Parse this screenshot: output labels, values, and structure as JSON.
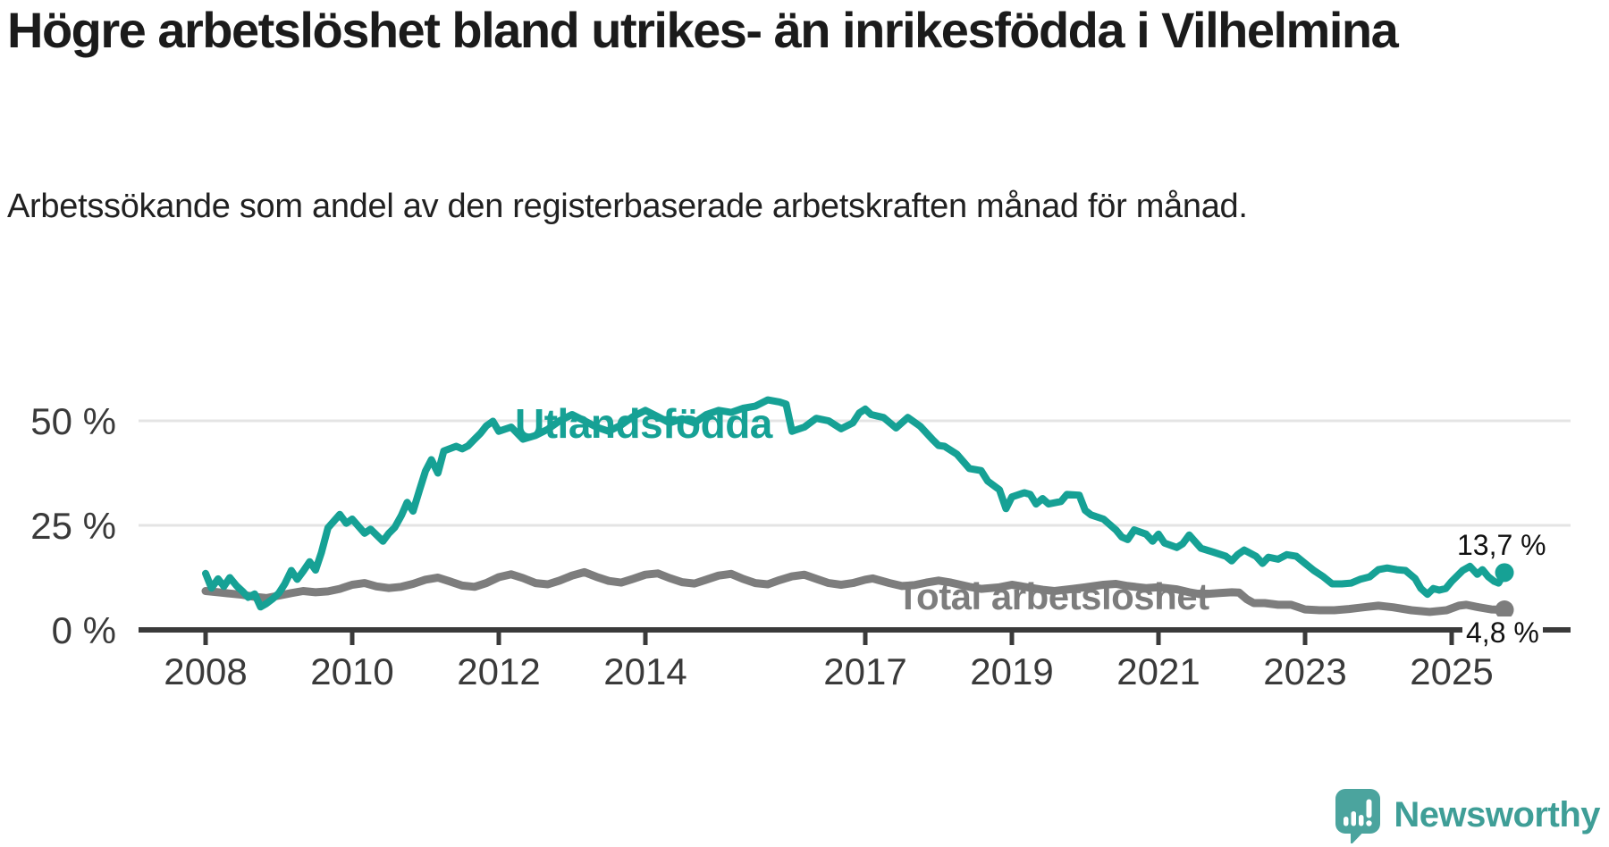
{
  "header": {
    "title": "Högre arbetslöshet bland utrikes- än inrikesfödda i Vilhelmina",
    "subtitle": "Arbetssökande som andel av den registerbaserade arbetskraften månad för månad."
  },
  "logo": {
    "icon": "newsworthy-logo-icon",
    "text": "Newsworthy",
    "text_color": "#3f9e97",
    "icon_color": "#4ba49e"
  },
  "chart_data": {
    "type": "line",
    "title": "Högre arbetslöshet bland utrikes- än inrikesfödda i Vilhelmina",
    "subtitle": "Arbetssökande som andel av den registerbaserade arbetskraften månad för månad.",
    "xlabel": "",
    "ylabel": "",
    "ylim": [
      0,
      57
    ],
    "xlim": [
      2007.6,
      2026.3
    ],
    "grid": "horizontal",
    "grid_color": "#e4e4e4",
    "axis_color": "#3a3a3a",
    "tick_label_color": "#3a3a3a",
    "x_ticks": [
      {
        "label": "2008",
        "value": 2008
      },
      {
        "label": "2010",
        "value": 2010
      },
      {
        "label": "2012",
        "value": 2012
      },
      {
        "label": "2014",
        "value": 2014
      },
      {
        "label": "2017",
        "value": 2017
      },
      {
        "label": "2019",
        "value": 2019
      },
      {
        "label": "2021",
        "value": 2021
      },
      {
        "label": "2023",
        "value": 2023
      },
      {
        "label": "2025",
        "value": 2025
      }
    ],
    "y_ticks": [
      {
        "label": "0 %",
        "value": 0
      },
      {
        "label": "25 %",
        "value": 25
      },
      {
        "label": "50 %",
        "value": 50
      }
    ],
    "series": [
      {
        "name": "Utlandsfödda",
        "color": "#16a195",
        "end_label": "13,7 %",
        "end_value": 13.7,
        "points": [
          [
            2008.0,
            13.5
          ],
          [
            2008.08,
            10.0
          ],
          [
            2008.17,
            12.2
          ],
          [
            2008.25,
            10.4
          ],
          [
            2008.33,
            12.5
          ],
          [
            2008.42,
            10.6
          ],
          [
            2008.5,
            9.3
          ],
          [
            2008.58,
            7.8
          ],
          [
            2008.67,
            8.6
          ],
          [
            2008.75,
            5.5
          ],
          [
            2008.83,
            6.3
          ],
          [
            2008.92,
            7.5
          ],
          [
            2009.0,
            8.8
          ],
          [
            2009.08,
            11.0
          ],
          [
            2009.17,
            14.2
          ],
          [
            2009.25,
            12.1
          ],
          [
            2009.33,
            14.0
          ],
          [
            2009.42,
            16.3
          ],
          [
            2009.5,
            14.3
          ],
          [
            2009.58,
            18.5
          ],
          [
            2009.67,
            24.4
          ],
          [
            2009.75,
            26.0
          ],
          [
            2009.83,
            27.6
          ],
          [
            2009.92,
            25.5
          ],
          [
            2010.0,
            26.5
          ],
          [
            2010.17,
            23.1
          ],
          [
            2010.25,
            24.1
          ],
          [
            2010.42,
            21.2
          ],
          [
            2010.5,
            23.1
          ],
          [
            2010.58,
            24.5
          ],
          [
            2010.67,
            27.3
          ],
          [
            2010.75,
            30.5
          ],
          [
            2010.83,
            28.4
          ],
          [
            2010.92,
            33.5
          ],
          [
            2011.0,
            38.0
          ],
          [
            2011.08,
            40.7
          ],
          [
            2011.17,
            37.5
          ],
          [
            2011.25,
            42.8
          ],
          [
            2011.42,
            43.9
          ],
          [
            2011.5,
            43.3
          ],
          [
            2011.58,
            44.0
          ],
          [
            2011.67,
            45.6
          ],
          [
            2011.75,
            47.0
          ],
          [
            2011.83,
            48.8
          ],
          [
            2011.92,
            49.9
          ],
          [
            2012.0,
            47.5
          ],
          [
            2012.17,
            48.5
          ],
          [
            2012.33,
            45.6
          ],
          [
            2012.5,
            46.5
          ],
          [
            2012.67,
            48.0
          ],
          [
            2012.83,
            50.0
          ],
          [
            2013.0,
            51.5
          ],
          [
            2013.17,
            50.0
          ],
          [
            2013.33,
            48.5
          ],
          [
            2013.5,
            47.5
          ],
          [
            2013.67,
            49.0
          ],
          [
            2013.83,
            51.0
          ],
          [
            2014.0,
            52.5
          ],
          [
            2014.17,
            51.0
          ],
          [
            2014.33,
            49.5
          ],
          [
            2014.5,
            50.5
          ],
          [
            2014.67,
            49.5
          ],
          [
            2014.83,
            51.5
          ],
          [
            2015.0,
            52.5
          ],
          [
            2015.17,
            52.0
          ],
          [
            2015.33,
            53.0
          ],
          [
            2015.5,
            53.5
          ],
          [
            2015.67,
            55.0
          ],
          [
            2015.83,
            54.5
          ],
          [
            2015.92,
            54.0
          ],
          [
            2016.0,
            47.5
          ],
          [
            2016.17,
            48.5
          ],
          [
            2016.33,
            50.6
          ],
          [
            2016.5,
            50.0
          ],
          [
            2016.67,
            48.1
          ],
          [
            2016.83,
            49.5
          ],
          [
            2016.92,
            51.9
          ],
          [
            2017.0,
            52.8
          ],
          [
            2017.08,
            51.5
          ],
          [
            2017.25,
            50.8
          ],
          [
            2017.42,
            48.3
          ],
          [
            2017.58,
            50.8
          ],
          [
            2017.75,
            48.7
          ],
          [
            2017.92,
            45.5
          ],
          [
            2018.0,
            44.1
          ],
          [
            2018.08,
            43.9
          ],
          [
            2018.25,
            42.0
          ],
          [
            2018.42,
            38.6
          ],
          [
            2018.58,
            38.1
          ],
          [
            2018.67,
            35.6
          ],
          [
            2018.83,
            33.5
          ],
          [
            2018.92,
            29.0
          ],
          [
            2019.0,
            31.8
          ],
          [
            2019.17,
            32.8
          ],
          [
            2019.25,
            32.4
          ],
          [
            2019.33,
            30.1
          ],
          [
            2019.42,
            31.4
          ],
          [
            2019.5,
            30.1
          ],
          [
            2019.67,
            30.7
          ],
          [
            2019.75,
            32.4
          ],
          [
            2019.92,
            32.2
          ],
          [
            2020.0,
            28.6
          ],
          [
            2020.08,
            27.5
          ],
          [
            2020.25,
            26.5
          ],
          [
            2020.42,
            23.9
          ],
          [
            2020.5,
            22.2
          ],
          [
            2020.58,
            21.6
          ],
          [
            2020.67,
            23.9
          ],
          [
            2020.83,
            22.9
          ],
          [
            2020.92,
            21.2
          ],
          [
            2021.0,
            22.9
          ],
          [
            2021.08,
            20.8
          ],
          [
            2021.25,
            19.7
          ],
          [
            2021.33,
            20.6
          ],
          [
            2021.42,
            22.7
          ],
          [
            2021.58,
            19.5
          ],
          [
            2021.75,
            18.6
          ],
          [
            2021.92,
            17.6
          ],
          [
            2022.0,
            16.5
          ],
          [
            2022.08,
            18.0
          ],
          [
            2022.17,
            19.1
          ],
          [
            2022.33,
            17.6
          ],
          [
            2022.42,
            15.9
          ],
          [
            2022.5,
            17.4
          ],
          [
            2022.63,
            16.9
          ],
          [
            2022.75,
            18.0
          ],
          [
            2022.88,
            17.6
          ],
          [
            2023.0,
            15.9
          ],
          [
            2023.12,
            14.2
          ],
          [
            2023.25,
            12.7
          ],
          [
            2023.37,
            11.0
          ],
          [
            2023.5,
            11.0
          ],
          [
            2023.63,
            11.2
          ],
          [
            2023.75,
            12.1
          ],
          [
            2023.88,
            12.7
          ],
          [
            2024.0,
            14.4
          ],
          [
            2024.12,
            14.8
          ],
          [
            2024.25,
            14.4
          ],
          [
            2024.37,
            14.2
          ],
          [
            2024.5,
            12.3
          ],
          [
            2024.58,
            9.9
          ],
          [
            2024.67,
            8.5
          ],
          [
            2024.75,
            9.9
          ],
          [
            2024.83,
            9.5
          ],
          [
            2024.92,
            9.9
          ],
          [
            2025.0,
            11.6
          ],
          [
            2025.15,
            14.2
          ],
          [
            2025.25,
            15.2
          ],
          [
            2025.35,
            13.3
          ],
          [
            2025.42,
            14.4
          ],
          [
            2025.5,
            12.7
          ],
          [
            2025.58,
            11.6
          ],
          [
            2025.64,
            11.2
          ],
          [
            2025.72,
            13.7
          ]
        ]
      },
      {
        "name": "Total arbetslöshet",
        "color": "#7d7d7d",
        "end_label": "4,8 %",
        "end_value": 4.8,
        "points": [
          [
            2008.0,
            9.3
          ],
          [
            2008.17,
            9.0
          ],
          [
            2008.33,
            8.7
          ],
          [
            2008.5,
            8.4
          ],
          [
            2008.67,
            7.9
          ],
          [
            2008.83,
            7.6
          ],
          [
            2009.0,
            8.2
          ],
          [
            2009.17,
            8.8
          ],
          [
            2009.33,
            9.3
          ],
          [
            2009.5,
            9.0
          ],
          [
            2009.67,
            9.2
          ],
          [
            2009.83,
            9.8
          ],
          [
            2010.0,
            10.8
          ],
          [
            2010.17,
            11.2
          ],
          [
            2010.33,
            10.4
          ],
          [
            2010.5,
            10.0
          ],
          [
            2010.67,
            10.3
          ],
          [
            2010.83,
            11.0
          ],
          [
            2011.0,
            12.0
          ],
          [
            2011.17,
            12.5
          ],
          [
            2011.33,
            11.6
          ],
          [
            2011.5,
            10.6
          ],
          [
            2011.67,
            10.3
          ],
          [
            2011.83,
            11.2
          ],
          [
            2012.0,
            12.6
          ],
          [
            2012.17,
            13.3
          ],
          [
            2012.33,
            12.4
          ],
          [
            2012.5,
            11.2
          ],
          [
            2012.67,
            10.9
          ],
          [
            2012.83,
            11.8
          ],
          [
            2013.0,
            13.0
          ],
          [
            2013.17,
            13.8
          ],
          [
            2013.33,
            12.7
          ],
          [
            2013.5,
            11.7
          ],
          [
            2013.67,
            11.3
          ],
          [
            2013.83,
            12.2
          ],
          [
            2014.0,
            13.2
          ],
          [
            2014.17,
            13.5
          ],
          [
            2014.33,
            12.4
          ],
          [
            2014.5,
            11.4
          ],
          [
            2014.67,
            11.1
          ],
          [
            2014.83,
            12.0
          ],
          [
            2015.0,
            13.0
          ],
          [
            2015.17,
            13.4
          ],
          [
            2015.33,
            12.2
          ],
          [
            2015.5,
            11.2
          ],
          [
            2015.67,
            10.9
          ],
          [
            2015.83,
            11.9
          ],
          [
            2016.0,
            12.8
          ],
          [
            2016.17,
            13.2
          ],
          [
            2016.33,
            12.2
          ],
          [
            2016.5,
            11.2
          ],
          [
            2016.67,
            10.8
          ],
          [
            2016.83,
            11.2
          ],
          [
            2017.0,
            12.0
          ],
          [
            2017.1,
            12.3
          ],
          [
            2017.33,
            11.2
          ],
          [
            2017.5,
            10.5
          ],
          [
            2017.67,
            10.7
          ],
          [
            2017.83,
            11.3
          ],
          [
            2018.0,
            11.8
          ],
          [
            2018.17,
            11.3
          ],
          [
            2018.42,
            10.3
          ],
          [
            2018.58,
            9.8
          ],
          [
            2018.83,
            10.2
          ],
          [
            2019.0,
            10.8
          ],
          [
            2019.17,
            10.3
          ],
          [
            2019.42,
            9.6
          ],
          [
            2019.58,
            9.3
          ],
          [
            2019.83,
            9.8
          ],
          [
            2020.0,
            10.2
          ],
          [
            2020.25,
            10.8
          ],
          [
            2020.42,
            11.0
          ],
          [
            2020.58,
            10.5
          ],
          [
            2020.83,
            10.0
          ],
          [
            2021.0,
            10.2
          ],
          [
            2021.25,
            9.7
          ],
          [
            2021.42,
            9.0
          ],
          [
            2021.58,
            8.5
          ],
          [
            2021.83,
            8.8
          ],
          [
            2022.0,
            9.0
          ],
          [
            2022.1,
            8.9
          ],
          [
            2022.2,
            7.4
          ],
          [
            2022.3,
            6.4
          ],
          [
            2022.45,
            6.4
          ],
          [
            2022.63,
            6.0
          ],
          [
            2022.81,
            6.0
          ],
          [
            2023.0,
            4.9
          ],
          [
            2023.2,
            4.7
          ],
          [
            2023.4,
            4.7
          ],
          [
            2023.6,
            5.0
          ],
          [
            2023.8,
            5.4
          ],
          [
            2024.0,
            5.8
          ],
          [
            2024.2,
            5.4
          ],
          [
            2024.45,
            4.7
          ],
          [
            2024.7,
            4.3
          ],
          [
            2024.93,
            4.7
          ],
          [
            2025.1,
            5.8
          ],
          [
            2025.2,
            6.0
          ],
          [
            2025.37,
            5.4
          ],
          [
            2025.54,
            4.9
          ],
          [
            2025.72,
            4.8
          ]
        ]
      }
    ],
    "legend_position": "inline-labels",
    "annotations": [
      {
        "text": "13,7 %",
        "series": "Utlandsfödda"
      },
      {
        "text": "4,8 %",
        "series": "Total arbetslöshet"
      }
    ]
  }
}
